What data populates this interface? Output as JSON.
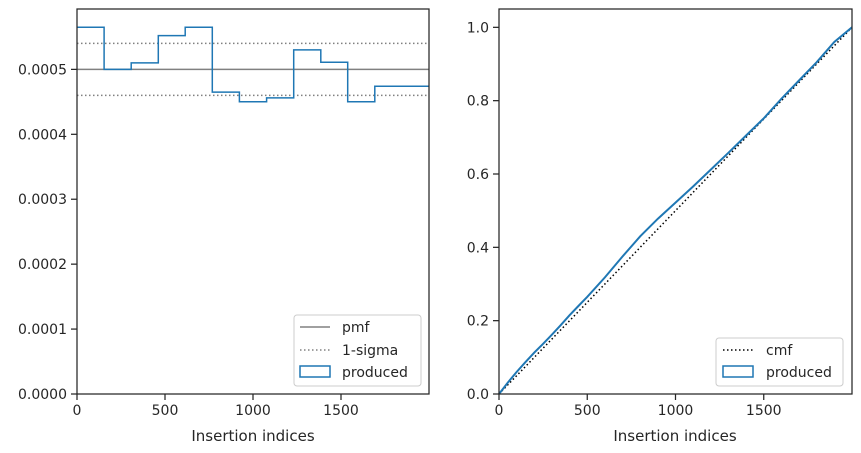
{
  "chart_data": [
    {
      "type": "histogram",
      "xlabel": "Insertion indices",
      "ylabel": "",
      "xlim": [
        0,
        2000
      ],
      "ylim": [
        0,
        0.000593
      ],
      "xticks": [
        0,
        500,
        1000,
        1500
      ],
      "xtick_labels": [
        "0",
        "500",
        "1000",
        "1500"
      ],
      "yticks": [
        0,
        0.0001,
        0.0002,
        0.0003,
        0.0004,
        0.0005
      ],
      "ytick_labels": [
        "0.0000",
        "0.0001",
        "0.0002",
        "0.0003",
        "0.0004",
        "0.0005"
      ],
      "pmf": 0.0005,
      "sigma_band": [
        0.00046,
        0.00054
      ],
      "bin_edges": [
        0,
        154,
        308,
        462,
        615,
        769,
        923,
        1077,
        1231,
        1385,
        1538,
        1692,
        2000
      ],
      "values": [
        0.000565,
        0.0005,
        0.00051,
        0.000552,
        0.000565,
        0.000465,
        0.00045,
        0.000456,
        0.00053,
        0.000511,
        0.00045,
        0.000474
      ],
      "legend": {
        "placement": "lower right",
        "entries": [
          "pmf",
          "1-sigma",
          "produced"
        ]
      },
      "colors": {
        "pmf": "#808080",
        "sigma": "#808080",
        "produced": "#1f77b4"
      },
      "grid": false
    },
    {
      "type": "line",
      "xlabel": "Insertion indices",
      "ylabel": "",
      "xlim": [
        0,
        2000
      ],
      "ylim": [
        0,
        1.05
      ],
      "xticks": [
        0,
        500,
        1000,
        1500
      ],
      "xtick_labels": [
        "0",
        "500",
        "1000",
        "1500"
      ],
      "yticks": [
        0,
        0.2,
        0.4,
        0.6,
        0.8,
        1.0
      ],
      "ytick_labels": [
        "0.0",
        "0.2",
        "0.4",
        "0.6",
        "0.8",
        "1.0"
      ],
      "cmf": {
        "x": [
          0,
          2000
        ],
        "y": [
          0,
          1.0
        ]
      },
      "produced": {
        "x": [
          0,
          50,
          100,
          150,
          200,
          250,
          300,
          350,
          400,
          450,
          500,
          600,
          700,
          800,
          900,
          1000,
          1100,
          1200,
          1300,
          1400,
          1500,
          1600,
          1700,
          1800,
          1900,
          2000
        ],
        "y": [
          0,
          0.031,
          0.06,
          0.087,
          0.113,
          0.137,
          0.162,
          0.188,
          0.215,
          0.24,
          0.265,
          0.318,
          0.375,
          0.43,
          0.478,
          0.522,
          0.566,
          0.612,
          0.658,
          0.705,
          0.752,
          0.805,
          0.855,
          0.905,
          0.96,
          1.0
        ]
      },
      "legend": {
        "placement": "lower right",
        "entries": [
          "cmf",
          "produced"
        ]
      },
      "colors": {
        "cmf": "#000000",
        "produced": "#1f77b4"
      },
      "grid": false
    }
  ]
}
